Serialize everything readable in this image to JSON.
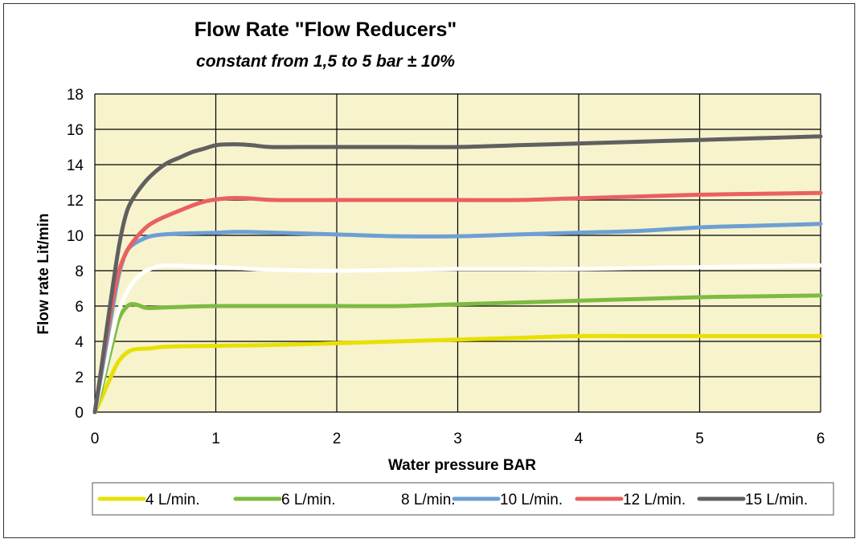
{
  "chart_data": {
    "type": "line",
    "title": "Flow Rate \"Flow Reducers\"",
    "subtitle": "constant  from 1,5 to 5 bar ± 10%",
    "xlabel": "Water pressure  BAR",
    "ylabel": "Flow rate Lit/min",
    "xlim": [
      0,
      6
    ],
    "ylim": [
      0,
      18
    ],
    "xticks": [
      "0",
      "1",
      "2",
      "3",
      "4",
      "5",
      "6"
    ],
    "yticks": [
      "0",
      "2",
      "4",
      "6",
      "8",
      "10",
      "12",
      "14",
      "16",
      "18"
    ],
    "grid": true,
    "background": "#f7f3cd",
    "legend_position": "bottom",
    "series": [
      {
        "name": "4 L/min.",
        "color": "#e8e000",
        "x": [
          0,
          0.05,
          0.12,
          0.2,
          0.3,
          0.45,
          0.6,
          1,
          1.5,
          2,
          2.5,
          3,
          3.5,
          4,
          4.5,
          5,
          5.5,
          6
        ],
        "y": [
          0,
          0.7,
          1.8,
          2.9,
          3.5,
          3.6,
          3.7,
          3.75,
          3.8,
          3.9,
          4.0,
          4.1,
          4.2,
          4.3,
          4.3,
          4.3,
          4.3,
          4.3
        ]
      },
      {
        "name": "6 L/min.",
        "color": "#7dbb42",
        "x": [
          0,
          0.05,
          0.1,
          0.15,
          0.2,
          0.27,
          0.33,
          0.42,
          0.5,
          0.7,
          1,
          1.5,
          2,
          2.5,
          3,
          3.5,
          4,
          4.5,
          5,
          5.5,
          6
        ],
        "y": [
          0,
          1.2,
          2.6,
          4.0,
          5.3,
          6.0,
          6.1,
          5.9,
          5.9,
          5.95,
          6.0,
          6.0,
          6.0,
          6.0,
          6.1,
          6.2,
          6.3,
          6.4,
          6.5,
          6.55,
          6.6
        ]
      },
      {
        "name": "8 L/min.",
        "color": "#ffffff",
        "x": [
          0,
          0.05,
          0.1,
          0.15,
          0.2,
          0.3,
          0.4,
          0.5,
          0.6,
          0.8,
          1,
          1.5,
          2,
          2.5,
          3,
          3.5,
          4,
          4.5,
          5,
          5.5,
          6
        ],
        "y": [
          0,
          1.5,
          3.0,
          4.5,
          5.8,
          7.2,
          7.9,
          8.2,
          8.3,
          8.25,
          8.2,
          8.05,
          8.0,
          8.05,
          8.1,
          8.1,
          8.1,
          8.15,
          8.2,
          8.25,
          8.3
        ]
      },
      {
        "name": "10 L/min.",
        "color": "#6e9fd4",
        "x": [
          0,
          0.05,
          0.1,
          0.15,
          0.2,
          0.25,
          0.3,
          0.4,
          0.5,
          0.7,
          1,
          1.2,
          1.5,
          2,
          2.5,
          3,
          3.5,
          4,
          4.5,
          5,
          5.5,
          6
        ],
        "y": [
          0,
          2.0,
          4.0,
          6.0,
          7.8,
          8.9,
          9.4,
          9.8,
          10.0,
          10.1,
          10.15,
          10.2,
          10.15,
          10.05,
          9.95,
          9.95,
          10.05,
          10.15,
          10.25,
          10.45,
          10.55,
          10.65
        ]
      },
      {
        "name": "12 L/min.",
        "color": "#ea6060",
        "x": [
          0,
          0.05,
          0.1,
          0.15,
          0.2,
          0.25,
          0.3,
          0.4,
          0.5,
          0.7,
          0.9,
          1.1,
          1.25,
          1.5,
          2,
          2.5,
          3,
          3.5,
          4,
          4.5,
          5,
          5.5,
          6
        ],
        "y": [
          0,
          2.2,
          4.4,
          6.4,
          8.0,
          8.9,
          9.5,
          10.3,
          10.8,
          11.4,
          11.9,
          12.1,
          12.1,
          12.0,
          12.0,
          12.0,
          12.0,
          12.0,
          12.1,
          12.2,
          12.3,
          12.35,
          12.4
        ]
      },
      {
        "name": "15 L/min.",
        "color": "#606060",
        "x": [
          0,
          0.05,
          0.1,
          0.15,
          0.2,
          0.25,
          0.3,
          0.4,
          0.5,
          0.6,
          0.7,
          0.8,
          0.9,
          1,
          1.1,
          1.2,
          1.3,
          1.45,
          1.7,
          2,
          2.5,
          3,
          3.5,
          4,
          4.5,
          5,
          5.5,
          6
        ],
        "y": [
          0,
          2.3,
          4.8,
          7.2,
          9.4,
          11.0,
          11.9,
          12.9,
          13.6,
          14.1,
          14.4,
          14.7,
          14.9,
          15.1,
          15.15,
          15.15,
          15.1,
          15.0,
          15.0,
          15.0,
          15.0,
          15.0,
          15.1,
          15.2,
          15.3,
          15.4,
          15.5,
          15.6
        ]
      }
    ]
  }
}
